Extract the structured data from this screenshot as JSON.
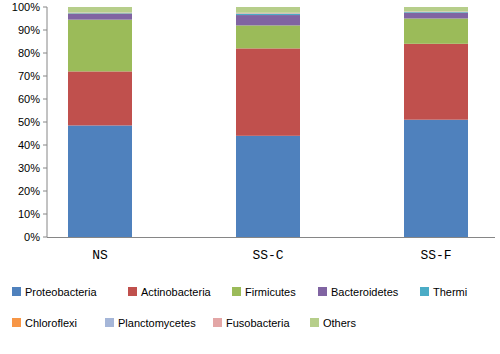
{
  "chart_data": {
    "type": "bar",
    "stacked": true,
    "grid": false,
    "legend": "bottom",
    "categories": [
      "NS",
      "SS-C",
      "SS-F"
    ],
    "ylim": [
      0,
      100
    ],
    "yticks": [
      {
        "value": 0,
        "label": "0%"
      },
      {
        "value": 10,
        "label": "10%"
      },
      {
        "value": 20,
        "label": "20%"
      },
      {
        "value": 30,
        "label": "30%"
      },
      {
        "value": 40,
        "label": "40%"
      },
      {
        "value": 50,
        "label": "50%"
      },
      {
        "value": 60,
        "label": "60%"
      },
      {
        "value": 70,
        "label": "70%"
      },
      {
        "value": 80,
        "label": "80%"
      },
      {
        "value": 90,
        "label": "90%"
      },
      {
        "value": 100,
        "label": "100%"
      }
    ],
    "series": [
      {
        "name": "Proteobacteria",
        "color": "#4f81bd",
        "values": [
          48.5,
          44,
          51
        ]
      },
      {
        "name": "Actinobacteria",
        "color": "#c0504d",
        "values": [
          23.5,
          38,
          33
        ]
      },
      {
        "name": "Firmicutes",
        "color": "#9bbb59",
        "values": [
          22.5,
          10,
          11
        ]
      },
      {
        "name": "Bacteroidetes",
        "color": "#8064a2",
        "values": [
          2.5,
          4.5,
          2.5
        ]
      },
      {
        "name": "Thermi",
        "color": "#4bacc6",
        "values": [
          0.3,
          0.5,
          0.3
        ]
      },
      {
        "name": "Chloroflexi",
        "color": "#f79646",
        "values": [
          0.1,
          0.2,
          0.1
        ]
      },
      {
        "name": "Planctomycetes",
        "color": "#a5b6d8",
        "values": [
          0.1,
          0.2,
          0.1
        ]
      },
      {
        "name": "Fusobacteria",
        "color": "#e3a6a6",
        "values": [
          0.1,
          0.1,
          0.1
        ]
      },
      {
        "name": "Others",
        "color": "#b6ce8a",
        "values": [
          2.4,
          2.5,
          1.9
        ]
      }
    ]
  }
}
